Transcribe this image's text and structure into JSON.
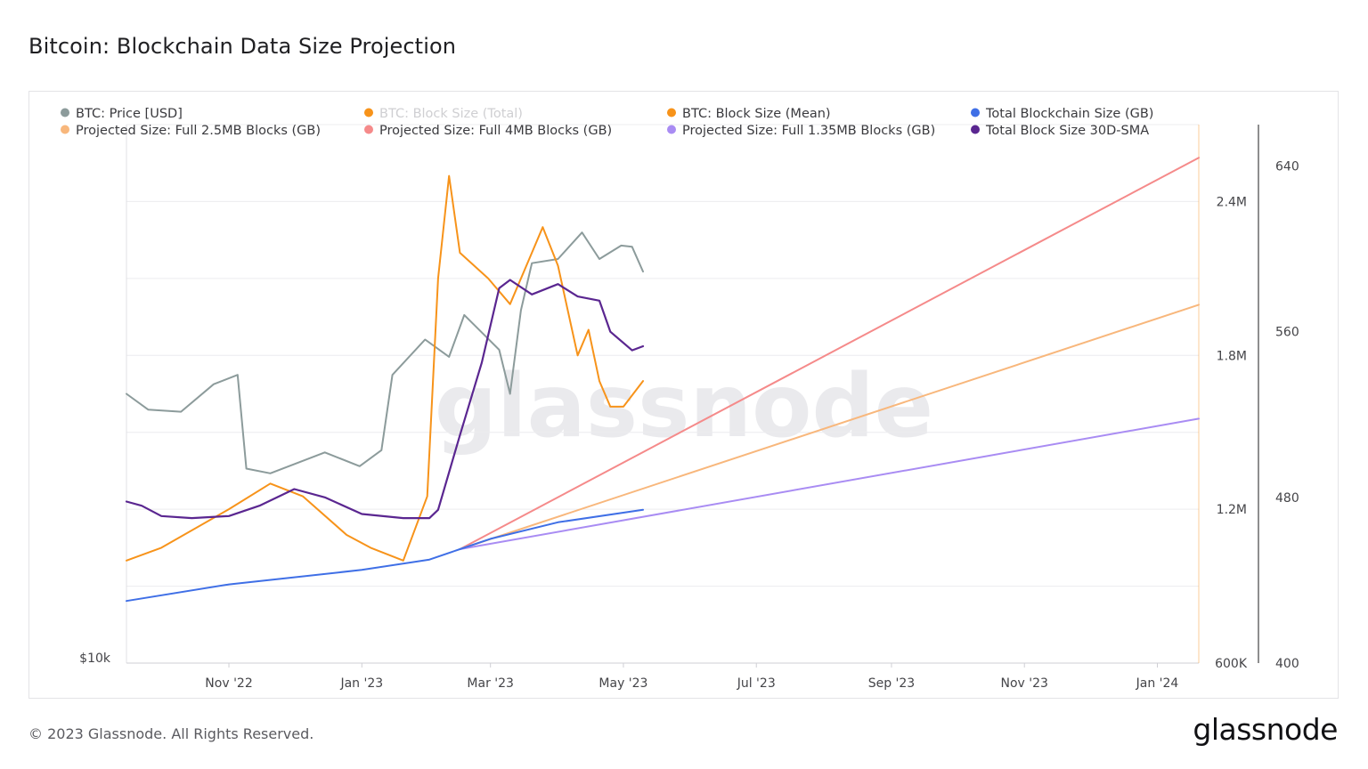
{
  "page": {
    "title": "Bitcoin: Blockchain Data Size Projection",
    "copyright": "© 2023 Glassnode. All Rights Reserved.",
    "logo": "glassnode",
    "watermark": "glassnode"
  },
  "chart_data": {
    "type": "line",
    "title": "Bitcoin: Blockchain Data Size Projection",
    "x_axis": {
      "type": "date",
      "range": [
        "2022-09-15",
        "2024-01-20"
      ],
      "ticks": [
        {
          "label": "Nov '22",
          "date": "2022-11-01"
        },
        {
          "label": "Jan '23",
          "date": "2023-01-01"
        },
        {
          "label": "Mar '23",
          "date": "2023-03-01"
        },
        {
          "label": "May '23",
          "date": "2023-05-01"
        },
        {
          "label": "Jul '23",
          "date": "2023-07-01"
        },
        {
          "label": "Sep '23",
          "date": "2023-09-01"
        },
        {
          "label": "Nov '23",
          "date": "2023-11-01"
        },
        {
          "label": "Jan '24",
          "date": "2024-01-01"
        }
      ]
    },
    "y_axes": {
      "price": {
        "scale": "log",
        "tick_labels": [
          "$10k"
        ],
        "min": 10000,
        "max": 40000
      },
      "block_size": {
        "range": [
          600000,
          2700000
        ],
        "ticks": [
          600000,
          1200000,
          1800000,
          2400000
        ],
        "tick_labels": [
          "600K",
          "1.2M",
          "1.8M",
          "2.4M"
        ],
        "color": "#f7931a"
      },
      "gb": {
        "range": [
          400,
          660
        ],
        "ticks": [
          400,
          480,
          560,
          640
        ],
        "tick_labels": [
          "400",
          "480",
          "560",
          "640"
        ]
      }
    },
    "grid": true,
    "legend_position": "top",
    "legend": [
      {
        "name": "BTC: Price [USD]",
        "color": "#8c9b9b"
      },
      {
        "name": "BTC: Block Size (Total)",
        "color": "#f7931a",
        "hidden": true
      },
      {
        "name": "BTC: Block Size (Mean)",
        "color": "#f7931a"
      },
      {
        "name": "Total Blockchain Size (GB)",
        "color": "#3f6fe6"
      },
      {
        "name": "Projected Size: Full 2.5MB Blocks (GB)",
        "color": "#f8b77c"
      },
      {
        "name": "Projected Size: Full 4MB Blocks (GB)",
        "color": "#f58a8a"
      },
      {
        "name": "Projected Size: Full 1.35MB Blocks (GB)",
        "color": "#a98cf3"
      },
      {
        "name": "Total Block Size 30D-SMA",
        "color": "#5a2690"
      }
    ],
    "series": [
      {
        "name": "Total Blockchain Size (GB)",
        "axis": "gb",
        "color": "#3f6fe6",
        "points": [
          [
            "2022-09-15",
            430
          ],
          [
            "2022-11-01",
            438
          ],
          [
            "2023-01-01",
            445
          ],
          [
            "2023-02-01",
            450
          ],
          [
            "2023-02-15",
            455
          ],
          [
            "2023-03-01",
            460
          ],
          [
            "2023-04-01",
            468
          ],
          [
            "2023-05-10",
            474
          ]
        ]
      },
      {
        "name": "Projected Size: Full 4MB Blocks (GB)",
        "axis": "gb",
        "color": "#f58a8a",
        "points": [
          [
            "2023-02-15",
            455
          ],
          [
            "2024-01-20",
            644
          ]
        ]
      },
      {
        "name": "Projected Size: Full 2.5MB Blocks (GB)",
        "axis": "gb",
        "color": "#f8b77c",
        "points": [
          [
            "2023-02-15",
            455
          ],
          [
            "2024-01-20",
            573
          ]
        ]
      },
      {
        "name": "Projected Size: Full 1.35MB Blocks (GB)",
        "axis": "gb",
        "color": "#a98cf3",
        "points": [
          [
            "2023-02-15",
            455
          ],
          [
            "2024-01-20",
            518
          ]
        ]
      },
      {
        "name": "Total Block Size 30D-SMA",
        "axis": "gb",
        "color": "#5a2690",
        "points": [
          [
            "2022-09-15",
            478
          ],
          [
            "2022-09-22",
            476
          ],
          [
            "2022-10-01",
            471
          ],
          [
            "2022-10-15",
            470
          ],
          [
            "2022-11-01",
            471
          ],
          [
            "2022-11-15",
            476
          ],
          [
            "2022-12-01",
            484
          ],
          [
            "2022-12-15",
            480
          ],
          [
            "2023-01-01",
            472
          ],
          [
            "2023-01-20",
            470
          ],
          [
            "2023-02-01",
            470
          ],
          [
            "2023-02-05",
            474
          ],
          [
            "2023-02-15",
            510
          ],
          [
            "2023-02-25",
            545
          ],
          [
            "2023-03-05",
            581
          ],
          [
            "2023-03-10",
            585
          ],
          [
            "2023-03-20",
            578
          ],
          [
            "2023-04-01",
            583
          ],
          [
            "2023-04-10",
            577
          ],
          [
            "2023-04-20",
            575
          ],
          [
            "2023-04-25",
            560
          ],
          [
            "2023-05-05",
            551
          ],
          [
            "2023-05-10",
            553
          ]
        ]
      },
      {
        "name": "BTC: Price [USD]",
        "axis": "price",
        "color": "#8c9b9b",
        "points": [
          [
            "2022-09-15",
            20000
          ],
          [
            "2022-09-25",
            19200
          ],
          [
            "2022-10-10",
            19100
          ],
          [
            "2022-10-25",
            20500
          ],
          [
            "2022-11-05",
            21000
          ],
          [
            "2022-11-09",
            16500
          ],
          [
            "2022-11-20",
            16300
          ],
          [
            "2022-12-15",
            17200
          ],
          [
            "2022-12-31",
            16600
          ],
          [
            "2023-01-10",
            17300
          ],
          [
            "2023-01-15",
            21000
          ],
          [
            "2023-01-30",
            23000
          ],
          [
            "2023-02-10",
            22000
          ],
          [
            "2023-02-17",
            24500
          ],
          [
            "2023-03-05",
            22400
          ],
          [
            "2023-03-10",
            20000
          ],
          [
            "2023-03-15",
            24800
          ],
          [
            "2023-03-20",
            28000
          ],
          [
            "2023-04-01",
            28300
          ],
          [
            "2023-04-12",
            30300
          ],
          [
            "2023-04-20",
            28300
          ],
          [
            "2023-04-30",
            29300
          ],
          [
            "2023-05-05",
            29200
          ],
          [
            "2023-05-10",
            27400
          ]
        ]
      },
      {
        "name": "BTC: Block Size (Mean)",
        "axis": "block_size",
        "color": "#f7931a",
        "points": [
          [
            "2022-09-15",
            1000000
          ],
          [
            "2022-10-01",
            1050000
          ],
          [
            "2022-11-01",
            1200000
          ],
          [
            "2022-11-20",
            1300000
          ],
          [
            "2022-12-05",
            1250000
          ],
          [
            "2022-12-25",
            1100000
          ],
          [
            "2023-01-05",
            1050000
          ],
          [
            "2023-01-20",
            1000000
          ],
          [
            "2023-01-31",
            1250000
          ],
          [
            "2023-02-05",
            2100000
          ],
          [
            "2023-02-10",
            2500000
          ],
          [
            "2023-02-15",
            2200000
          ],
          [
            "2023-02-28",
            2100000
          ],
          [
            "2023-03-10",
            2000000
          ],
          [
            "2023-03-20",
            2200000
          ],
          [
            "2023-03-25",
            2300000
          ],
          [
            "2023-04-01",
            2150000
          ],
          [
            "2023-04-10",
            1800000
          ],
          [
            "2023-04-15",
            1900000
          ],
          [
            "2023-04-20",
            1700000
          ],
          [
            "2023-04-25",
            1600000
          ],
          [
            "2023-05-01",
            1600000
          ],
          [
            "2023-05-10",
            1700000
          ]
        ]
      }
    ]
  }
}
